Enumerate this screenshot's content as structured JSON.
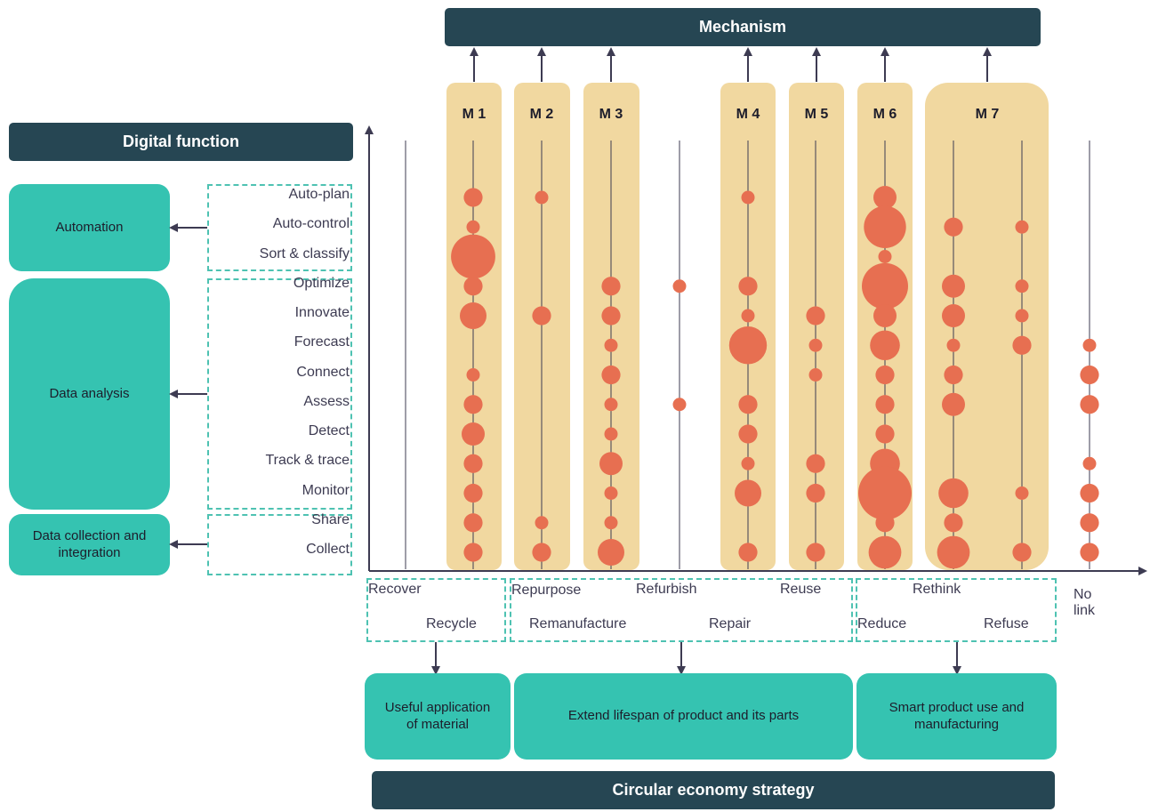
{
  "headers": {
    "mechanism": "Mechanism",
    "digital_function": "Digital function",
    "circular_strategy": "Circular economy strategy"
  },
  "function_groups": [
    {
      "label": "Automation"
    },
    {
      "label": "Data analysis"
    },
    {
      "label": "Data collection and integration"
    }
  ],
  "functions": [
    "Auto-plan",
    "Auto-control",
    "Sort & classify",
    "Optimize",
    "Innovate",
    "Forecast",
    "Connect",
    "Assess",
    "Detect",
    "Track & trace",
    "Monitor",
    "Share",
    "Collect"
  ],
  "mechanisms": [
    "M 1",
    "M 2",
    "M 3",
    "M 4",
    "M 5",
    "M 6",
    "M 7"
  ],
  "strategies": [
    "Recover",
    "Recycle",
    "Repurpose",
    "Remanufacture",
    "Refurbish",
    "Repair",
    "Reuse",
    "Rethink",
    "Reduce",
    "Refuse"
  ],
  "no_link_label": "No\nlink",
  "strategy_groups": [
    {
      "label": "Useful application of material"
    },
    {
      "label": "Extend lifespan of product and its parts"
    },
    {
      "label": "Smart product use and manufacturing"
    }
  ],
  "colors": {
    "dark": "#264653",
    "teal": "#35c3b1",
    "mechanism_band": "#f1d8a0",
    "bubble": "#e76f51",
    "axis": "#3d3b52"
  },
  "bubble_matrix": {
    "columns": [
      "Recover",
      "Recycle",
      "Repurpose",
      "Remanufacture",
      "Refurbish",
      "Repair",
      "Reuse",
      "Rethink",
      "Reduce",
      "Refuse",
      "No link"
    ],
    "rows": [
      "Auto-plan",
      "Auto-control",
      "Sort & classify",
      "Optimize",
      "Innovate",
      "Forecast",
      "Connect",
      "Assess",
      "Detect",
      "Track & trace",
      "Monitor",
      "Share",
      "Collect"
    ],
    "relative_size": [
      [
        0,
        2,
        1,
        0,
        0,
        1,
        0,
        3,
        0,
        0,
        0
      ],
      [
        0,
        1,
        0,
        0,
        0,
        0,
        0,
        10,
        2,
        1,
        0
      ],
      [
        0,
        11,
        0,
        0,
        0,
        0,
        0,
        1,
        0,
        0,
        0
      ],
      [
        0,
        2,
        0,
        2,
        1,
        2,
        0,
        12,
        3,
        1,
        0
      ],
      [
        0,
        4,
        2,
        2,
        0,
        1,
        2,
        3,
        3,
        1,
        0
      ],
      [
        0,
        0,
        0,
        1,
        0,
        8,
        1,
        5,
        1,
        2,
        1
      ],
      [
        0,
        1,
        0,
        2,
        0,
        0,
        1,
        2,
        2,
        0,
        2
      ],
      [
        0,
        2,
        0,
        1,
        1,
        2,
        0,
        2,
        3,
        0,
        2
      ],
      [
        0,
        3,
        0,
        1,
        0,
        2,
        0,
        2,
        0,
        0,
        0
      ],
      [
        0,
        2,
        0,
        3,
        0,
        1,
        2,
        5,
        0,
        0,
        1
      ],
      [
        0,
        2,
        0,
        1,
        0,
        4,
        2,
        16,
        5,
        1,
        2
      ],
      [
        0,
        2,
        1,
        1,
        0,
        0,
        0,
        2,
        2,
        0,
        2
      ],
      [
        0,
        2,
        2,
        4,
        0,
        2,
        2,
        6,
        6,
        2,
        2
      ]
    ]
  }
}
